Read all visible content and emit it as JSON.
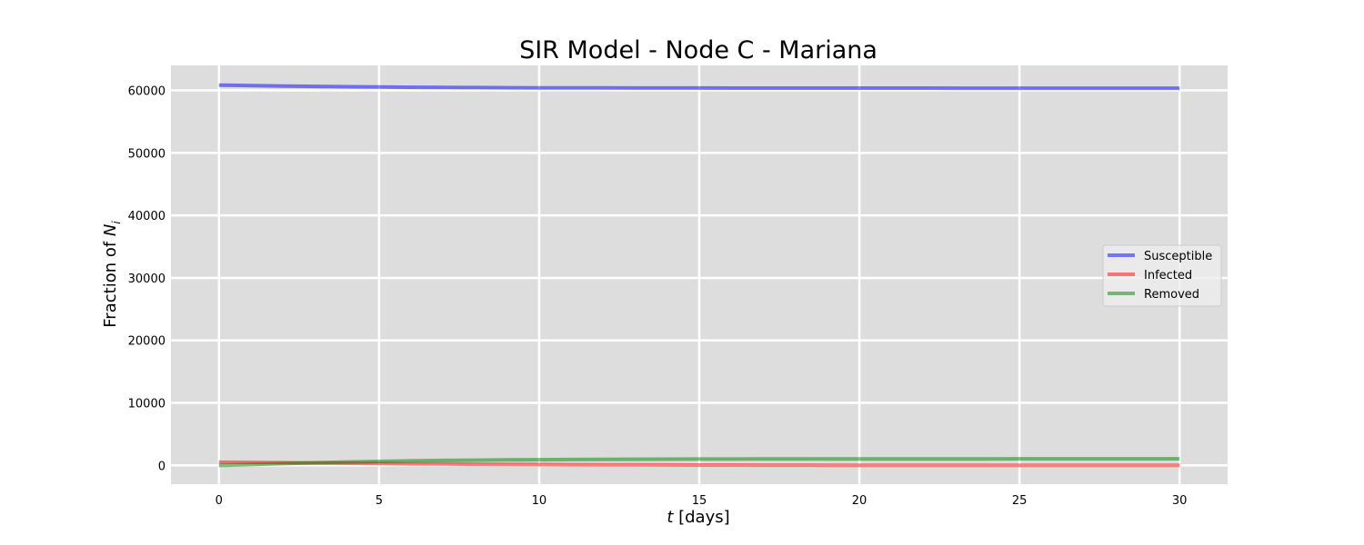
{
  "chart_data": {
    "type": "line",
    "title": "SIR Model - Node C - Mariana",
    "xlabel": {
      "var": "t",
      "rest": " [days]"
    },
    "ylabel": {
      "text": "Fraction of ",
      "var": "N",
      "sub": "i"
    },
    "xlim": [
      -1.5,
      31.5
    ],
    "ylim": [
      -3000,
      64000
    ],
    "xticks": [
      0,
      5,
      10,
      15,
      20,
      25,
      30
    ],
    "yticks": [
      0,
      10000,
      20000,
      30000,
      40000,
      50000,
      60000
    ],
    "grid": true,
    "legend_position": "center-right",
    "x": [
      0,
      1,
      2,
      3,
      4,
      5,
      6,
      7,
      8,
      9,
      10,
      11,
      12,
      13,
      14,
      15,
      16,
      17,
      18,
      19,
      20,
      21,
      22,
      23,
      24,
      25,
      26,
      27,
      28,
      29,
      30
    ],
    "series": [
      {
        "name": "Susceptible",
        "color": "#0000ff",
        "values": [
          60850,
          60780,
          60700,
          60640,
          60590,
          60540,
          60500,
          60470,
          60450,
          60430,
          60410,
          60400,
          60390,
          60385,
          60380,
          60375,
          60370,
          60368,
          60366,
          60364,
          60362,
          60361,
          60360,
          60359,
          60358,
          60357,
          60357,
          60356,
          60356,
          60355,
          60355
        ]
      },
      {
        "name": "Infected",
        "color": "#ff0000",
        "values": [
          500,
          470,
          430,
          390,
          345,
          300,
          260,
          225,
          190,
          160,
          135,
          113,
          95,
          80,
          67,
          56,
          47,
          39,
          33,
          27,
          23,
          19,
          16,
          13,
          11,
          9,
          8,
          7,
          6,
          5,
          4
        ]
      },
      {
        "name": "Removed",
        "color": "#008000",
        "values": [
          0,
          140,
          290,
          420,
          540,
          640,
          720,
          790,
          840,
          880,
          915,
          945,
          965,
          980,
          995,
          1005,
          1015,
          1022,
          1028,
          1033,
          1037,
          1040,
          1043,
          1045,
          1047,
          1049,
          1050,
          1051,
          1052,
          1053,
          1054
        ]
      }
    ]
  }
}
